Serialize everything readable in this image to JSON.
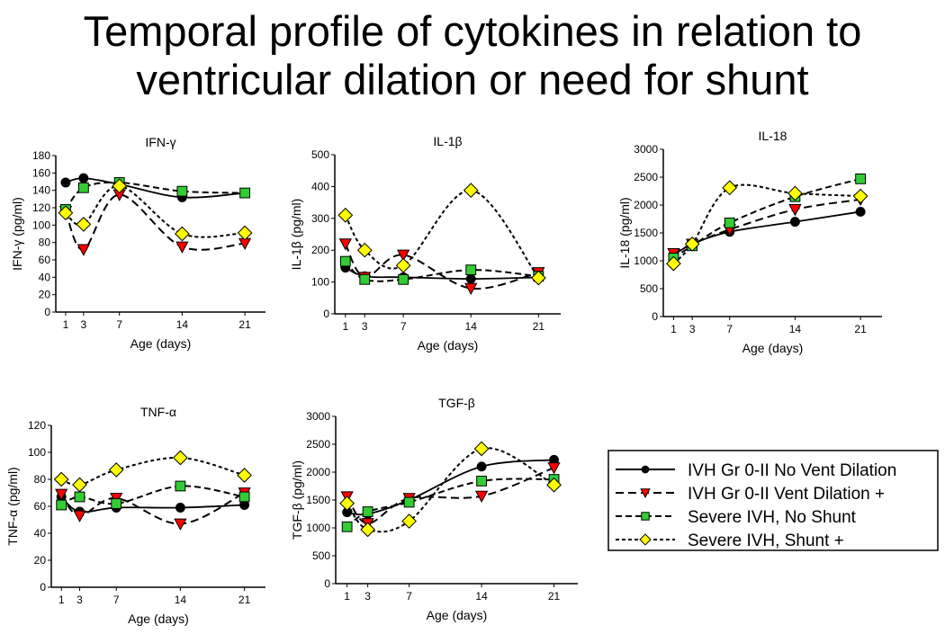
{
  "title": {
    "line1": "Temporal profile of cytokines in relation to",
    "line2": "ventricular dilation or need for shunt"
  },
  "legend": [
    {
      "label": "IVH Gr 0-II No Vent Dilation",
      "marker": "circle",
      "color": "#000000",
      "dash": "solid"
    },
    {
      "label": "IVH Gr 0-II Vent Dilation +",
      "marker": "triangle-down",
      "color": "#ff0000",
      "dash": "long"
    },
    {
      "label": "Severe IVH, No Shunt",
      "marker": "square",
      "color": "#33cc33",
      "dash": "medium"
    },
    {
      "label": "Severe IVH, Shunt +",
      "marker": "diamond",
      "color": "#ffff00",
      "dash": "short"
    }
  ],
  "chart_data": [
    {
      "type": "line",
      "title": "IFN-γ",
      "xlabel": "Age (days)",
      "ylabel": "IFN-γ (pg/ml)",
      "x": [
        1,
        3,
        7,
        14,
        21
      ],
      "ylim": [
        0,
        180
      ],
      "yticks": [
        0,
        20,
        40,
        60,
        80,
        100,
        120,
        140,
        160,
        180
      ],
      "series": [
        {
          "name": "IVH Gr 0-II No Vent Dilation",
          "values": [
            149,
            154,
            147,
            132,
            137
          ]
        },
        {
          "name": "IVH Gr 0-II Vent Dilation +",
          "values": [
            116,
            72,
            135,
            75,
            79
          ]
        },
        {
          "name": "Severe IVH, No Shunt",
          "values": [
            118,
            143,
            149,
            139,
            137
          ]
        },
        {
          "name": "Severe IVH, Shunt +",
          "values": [
            114,
            101,
            145,
            90,
            91
          ]
        }
      ]
    },
    {
      "type": "line",
      "title": "IL-1β",
      "xlabel": "Age (days)",
      "ylabel": "IL-1β (pg/ml)",
      "x": [
        1,
        3,
        7,
        14,
        21
      ],
      "ylim": [
        0,
        500
      ],
      "yticks": [
        0,
        100,
        200,
        300,
        400,
        500
      ],
      "series": [
        {
          "name": "IVH Gr 0-II No Vent Dilation",
          "values": [
            145,
            118,
            115,
            110,
            115
          ]
        },
        {
          "name": "IVH Gr 0-II Vent Dilation +",
          "values": [
            220,
            115,
            185,
            80,
            130
          ]
        },
        {
          "name": "Severe IVH, No Shunt",
          "values": [
            165,
            108,
            108,
            138,
            118
          ]
        },
        {
          "name": "Severe IVH, Shunt +",
          "values": [
            310,
            200,
            152,
            388,
            113
          ]
        }
      ]
    },
    {
      "type": "line",
      "title": "IL-18",
      "xlabel": "Age (days)",
      "ylabel": "IL-18 (pg/ml)",
      "x": [
        1,
        3,
        7,
        14,
        21
      ],
      "ylim": [
        0,
        3000
      ],
      "yticks": [
        0,
        500,
        1000,
        1500,
        2000,
        2500,
        3000
      ],
      "series": [
        {
          "name": "IVH Gr 0-II No Vent Dilation",
          "values": [
            1100,
            1300,
            1520,
            1700,
            1880
          ]
        },
        {
          "name": "IVH Gr 0-II Vent Dilation +",
          "values": [
            1130,
            1300,
            1560,
            1920,
            2100
          ]
        },
        {
          "name": "Severe IVH, No Shunt",
          "values": [
            1050,
            1270,
            1680,
            2150,
            2470
          ]
        },
        {
          "name": "Severe IVH, Shunt +",
          "values": [
            950,
            1300,
            2310,
            2210,
            2160
          ]
        }
      ]
    },
    {
      "type": "line",
      "title": "TNF-α",
      "xlabel": "Age (days)",
      "ylabel": "TNF-α (pg/ml)",
      "x": [
        1,
        3,
        7,
        14,
        21
      ],
      "ylim": [
        0,
        120
      ],
      "yticks": [
        0,
        20,
        40,
        60,
        80,
        100,
        120
      ],
      "series": [
        {
          "name": "IVH Gr 0-II No Vent Dilation",
          "values": [
            67,
            56,
            59,
            59,
            61
          ]
        },
        {
          "name": "IVH Gr 0-II Vent Dilation +",
          "values": [
            69,
            53,
            66,
            47,
            70
          ]
        },
        {
          "name": "Severe IVH, No Shunt",
          "values": [
            61,
            67,
            62,
            75,
            67
          ]
        },
        {
          "name": "Severe IVH, Shunt +",
          "values": [
            80,
            76,
            87,
            96,
            83
          ]
        }
      ]
    },
    {
      "type": "line",
      "title": "TGF-β",
      "xlabel": "Age (days)",
      "ylabel": "TGF-β (pg/ml)",
      "x": [
        1,
        3,
        7,
        14,
        21
      ],
      "ylim": [
        0,
        3000
      ],
      "yticks": [
        0,
        500,
        1000,
        1500,
        2000,
        2500,
        3000
      ],
      "series": [
        {
          "name": "IVH Gr 0-II No Vent Dilation",
          "values": [
            1280,
            1250,
            1500,
            2100,
            2220
          ]
        },
        {
          "name": "IVH Gr 0-II Vent Dilation +",
          "values": [
            1560,
            1080,
            1530,
            1570,
            2080
          ]
        },
        {
          "name": "Severe IVH, No Shunt",
          "values": [
            1020,
            1290,
            1460,
            1840,
            1870
          ]
        },
        {
          "name": "Severe IVH, Shunt +",
          "values": [
            1440,
            970,
            1120,
            2420,
            1770
          ]
        }
      ]
    }
  ]
}
